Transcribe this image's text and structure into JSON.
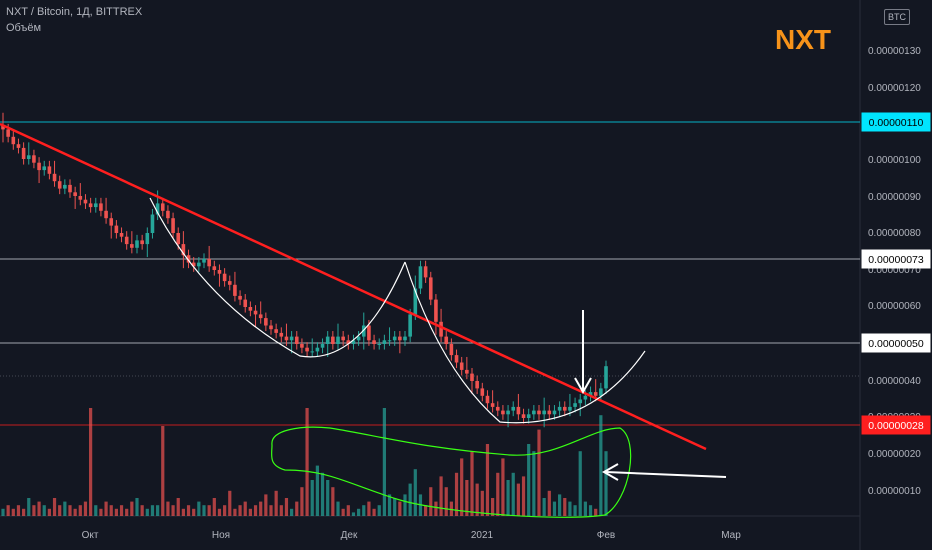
{
  "header": {
    "symbol_line": "NXT / Bitcoin, 1Д, BITTREX",
    "volume_label": "Объём"
  },
  "annotation_text": "NXT",
  "currency_badge": "BTC",
  "colors": {
    "background": "#131722",
    "up": "#26a69a",
    "down": "#ef5350",
    "trendline": "#ff1f1f",
    "cup": "#ffffff",
    "highlight": "#39ff14",
    "nxt": "#f7931a",
    "level_cyan": "#00e5ff",
    "level_red": "#ff1f1f"
  },
  "chart_data": {
    "type": "candlestick",
    "y_axis": {
      "ticks": [
        "0.00000130",
        "0.00000120",
        "0.00000100",
        "0.00000090",
        "0.00000080",
        "0.00000070",
        "0.00000060",
        "0.00000040",
        "0.00000030",
        "0.00000020",
        "0.00000010"
      ],
      "range": [
        0.0,
        1.4e-06
      ]
    },
    "x_axis": {
      "labels": [
        "Окт",
        "Ноя",
        "Дек",
        "2021",
        "Фев",
        "Мар"
      ]
    },
    "price_tags": [
      {
        "label": "0.00000110",
        "style": "cyan"
      },
      {
        "label": "0.00000073",
        "style": "white"
      },
      {
        "label": "0.00000050",
        "style": "white"
      },
      {
        "label": "0.00000028",
        "style": "red"
      }
    ],
    "series_close_estimated": [
      108,
      106,
      104,
      103,
      100,
      101,
      99,
      97,
      98,
      96,
      94,
      92,
      93,
      91,
      90,
      89,
      88,
      87,
      88,
      86,
      84,
      82,
      80,
      79,
      77,
      76,
      78,
      77,
      80,
      85,
      88,
      86,
      84,
      80,
      77,
      74,
      72,
      71,
      72,
      73,
      71,
      70,
      69,
      67,
      66,
      63,
      62,
      60,
      59,
      58,
      57,
      55,
      54,
      53,
      52,
      51,
      52,
      50,
      49,
      48,
      48,
      49,
      50,
      52,
      50,
      52,
      51,
      50,
      51,
      52,
      55,
      51,
      50,
      50,
      51,
      51,
      52,
      51,
      52,
      58,
      65,
      71,
      68,
      62,
      56,
      52,
      50,
      47,
      45,
      43,
      42,
      40,
      38,
      36,
      34,
      33,
      32,
      31,
      32,
      33,
      31,
      30,
      31,
      32,
      31,
      32,
      31,
      32,
      33,
      32,
      33,
      34,
      35,
      36,
      37,
      36,
      38,
      44
    ],
    "volume_estimated": [
      2,
      3,
      2,
      3,
      2,
      5,
      3,
      4,
      3,
      2,
      5,
      3,
      4,
      3,
      2,
      3,
      4,
      30,
      3,
      2,
      4,
      3,
      2,
      3,
      2,
      4,
      5,
      3,
      2,
      3,
      3,
      25,
      4,
      3,
      5,
      2,
      3,
      2,
      4,
      3,
      3,
      5,
      2,
      3,
      7,
      2,
      3,
      4,
      2,
      3,
      4,
      6,
      3,
      7,
      3,
      5,
      2,
      4,
      8,
      30,
      10,
      14,
      12,
      10,
      8,
      4,
      2,
      3,
      1,
      2,
      3,
      4,
      2,
      3,
      30,
      6,
      5,
      4,
      6,
      9,
      13,
      6,
      3,
      8,
      4,
      11,
      8,
      4,
      12,
      16,
      10,
      18,
      9,
      7,
      20,
      5,
      12,
      16,
      10,
      12,
      9,
      11,
      20,
      18,
      24,
      5,
      7,
      4,
      6,
      5,
      4,
      3,
      18,
      4,
      3,
      2,
      28,
      18
    ]
  }
}
